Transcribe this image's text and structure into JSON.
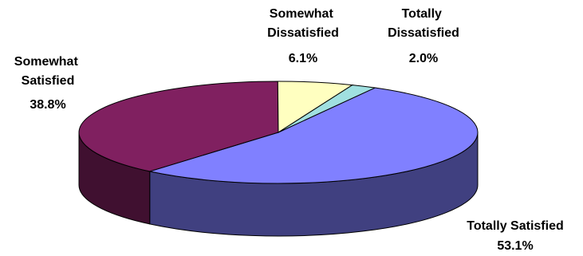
{
  "chart_data": {
    "type": "pie",
    "style": "3d",
    "start_angle_deg": 299,
    "direction": "clockwise",
    "slices": [
      {
        "label": "Totally Satisfied",
        "value": 53.1,
        "value_label": "53.1%",
        "color": "#8080FF",
        "side_color": "#404080"
      },
      {
        "label": "Somewhat Satisfied",
        "value": 38.8,
        "value_label": "38.8%",
        "color": "#802060",
        "side_color": "#401030"
      },
      {
        "label": "Somewhat Dissatisfied",
        "value": 6.1,
        "value_label": "6.1%",
        "color": "#FFFFC0",
        "side_color": "#808060"
      },
      {
        "label": "Totally Dissatisfied",
        "value": 2.0,
        "value_label": "2.0%",
        "color": "#A0E0E0",
        "side_color": "#507070"
      }
    ]
  }
}
